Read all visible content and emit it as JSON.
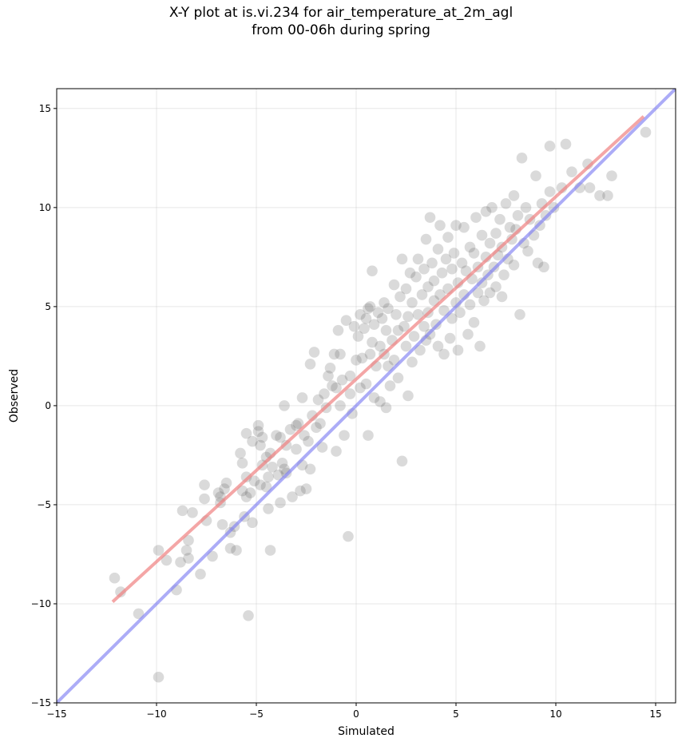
{
  "chart_data": {
    "type": "scatter",
    "title_line1": "X-Y plot at is.vi.234 for air_temperature_at_2m_agl",
    "title_line2": "from 00-06h during spring",
    "xlabel": "Simulated",
    "ylabel": "Observed",
    "xlim": [
      -15,
      16
    ],
    "ylim": [
      -15,
      16
    ],
    "xticks": [
      -15,
      -10,
      -5,
      0,
      5,
      10,
      15
    ],
    "yticks": [
      -15,
      -10,
      -5,
      0,
      5,
      10,
      15
    ],
    "xtick_labels": [
      "−15",
      "−10",
      "−5",
      "0",
      "5",
      "10",
      "15"
    ],
    "ytick_labels": [
      "−15",
      "−10",
      "−5",
      "0",
      "5",
      "10",
      "15"
    ],
    "grid": true,
    "colors": {
      "points": "#555555",
      "regression_line": "#f08080",
      "identity_line": "#7f7ff2"
    },
    "regression_line": {
      "x": [
        -12.2,
        14.4
      ],
      "y": [
        -9.9,
        14.6
      ]
    },
    "identity_line": {
      "x": [
        -15,
        16
      ],
      "y": [
        -15,
        16
      ]
    },
    "points": [
      [
        -12.1,
        -8.7
      ],
      [
        -11.8,
        -9.4
      ],
      [
        -10.9,
        -10.5
      ],
      [
        -9.9,
        -13.7
      ],
      [
        -9.9,
        -7.3
      ],
      [
        -9.5,
        -7.8
      ],
      [
        -9.0,
        -9.3
      ],
      [
        -8.8,
        -7.9
      ],
      [
        -8.7,
        -5.3
      ],
      [
        -8.5,
        -7.3
      ],
      [
        -8.4,
        -6.8
      ],
      [
        -8.4,
        -7.7
      ],
      [
        -8.2,
        -5.4
      ],
      [
        -7.8,
        -8.5
      ],
      [
        -7.6,
        -4.0
      ],
      [
        -7.6,
        -4.7
      ],
      [
        -7.5,
        -5.8
      ],
      [
        -7.2,
        -7.6
      ],
      [
        -6.9,
        -4.4
      ],
      [
        -6.8,
        -4.9
      ],
      [
        -6.8,
        -4.6
      ],
      [
        -6.7,
        -6.0
      ],
      [
        -6.6,
        -4.2
      ],
      [
        -6.5,
        -3.9
      ],
      [
        -6.3,
        -7.2
      ],
      [
        -6.3,
        -6.4
      ],
      [
        -6.1,
        -6.1
      ],
      [
        -6.0,
        -7.3
      ],
      [
        -5.8,
        -2.4
      ],
      [
        -5.7,
        -2.9
      ],
      [
        -5.7,
        -4.3
      ],
      [
        -5.6,
        -5.6
      ],
      [
        -5.5,
        -1.4
      ],
      [
        -5.5,
        -4.6
      ],
      [
        -5.5,
        -3.6
      ],
      [
        -5.4,
        -10.6
      ],
      [
        -5.3,
        -4.4
      ],
      [
        -5.2,
        -1.8
      ],
      [
        -5.2,
        -5.9
      ],
      [
        -5.1,
        -3.8
      ],
      [
        -4.9,
        -1.3
      ],
      [
        -4.9,
        -1.0
      ],
      [
        -4.8,
        -2.0
      ],
      [
        -4.8,
        -4.0
      ],
      [
        -4.7,
        -1.6
      ],
      [
        -4.7,
        -3.0
      ],
      [
        -4.5,
        -2.6
      ],
      [
        -4.5,
        -4.1
      ],
      [
        -4.4,
        -3.6
      ],
      [
        -4.4,
        -5.2
      ],
      [
        -4.3,
        -2.4
      ],
      [
        -4.3,
        -7.3
      ],
      [
        -4.2,
        -3.1
      ],
      [
        -4.0,
        -1.5
      ],
      [
        -3.9,
        -3.5
      ],
      [
        -3.8,
        -1.6
      ],
      [
        -3.8,
        -4.9
      ],
      [
        -3.7,
        -2.9
      ],
      [
        -3.6,
        0.0
      ],
      [
        -3.6,
        -3.2
      ],
      [
        -3.5,
        -2.0
      ],
      [
        -3.5,
        -3.4
      ],
      [
        -3.3,
        -1.2
      ],
      [
        -3.2,
        -4.6
      ],
      [
        -3.0,
        -2.2
      ],
      [
        -3.0,
        -1.0
      ],
      [
        -2.9,
        -0.9
      ],
      [
        -2.8,
        -4.3
      ],
      [
        -2.7,
        -3.0
      ],
      [
        -2.7,
        0.4
      ],
      [
        -2.6,
        -1.5
      ],
      [
        -2.5,
        -4.2
      ],
      [
        -2.4,
        -1.8
      ],
      [
        -2.3,
        2.1
      ],
      [
        -2.3,
        -3.2
      ],
      [
        -2.2,
        -0.5
      ],
      [
        -2.1,
        2.7
      ],
      [
        -2.0,
        -1.1
      ],
      [
        -1.9,
        0.3
      ],
      [
        -1.8,
        -0.9
      ],
      [
        -1.7,
        -2.1
      ],
      [
        -1.6,
        0.6
      ],
      [
        -1.5,
        -0.1
      ],
      [
        -1.4,
        1.5
      ],
      [
        -1.3,
        1.9
      ],
      [
        -1.2,
        1.0
      ],
      [
        -1.1,
        2.6
      ],
      [
        -1.0,
        -2.3
      ],
      [
        -1.0,
        0.9
      ],
      [
        -0.9,
        3.8
      ],
      [
        -0.8,
        2.6
      ],
      [
        -0.8,
        0.0
      ],
      [
        -0.7,
        1.3
      ],
      [
        -0.6,
        -1.5
      ],
      [
        -0.5,
        4.3
      ],
      [
        -0.4,
        -6.6
      ],
      [
        -0.3,
        0.6
      ],
      [
        -0.3,
        1.5
      ],
      [
        -0.2,
        -0.4
      ],
      [
        -0.1,
        4.0
      ],
      [
        0.0,
        2.3
      ],
      [
        0.1,
        3.5
      ],
      [
        0.2,
        0.9
      ],
      [
        0.2,
        4.6
      ],
      [
        0.3,
        2.4
      ],
      [
        0.4,
        3.9
      ],
      [
        0.5,
        4.4
      ],
      [
        0.5,
        1.1
      ],
      [
        0.6,
        -1.5
      ],
      [
        0.6,
        4.9
      ],
      [
        0.7,
        2.6
      ],
      [
        0.7,
        5.0
      ],
      [
        0.8,
        3.2
      ],
      [
        0.8,
        6.8
      ],
      [
        0.9,
        4.1
      ],
      [
        0.9,
        0.4
      ],
      [
        1.0,
        2.0
      ],
      [
        1.1,
        4.7
      ],
      [
        1.2,
        3.0
      ],
      [
        1.2,
        0.2
      ],
      [
        1.3,
        4.4
      ],
      [
        1.4,
        2.6
      ],
      [
        1.4,
        5.2
      ],
      [
        1.5,
        -0.1
      ],
      [
        1.5,
        3.8
      ],
      [
        1.6,
        2.0
      ],
      [
        1.6,
        4.9
      ],
      [
        1.7,
        1.0
      ],
      [
        1.8,
        3.3
      ],
      [
        1.9,
        6.1
      ],
      [
        1.9,
        2.3
      ],
      [
        2.0,
        4.6
      ],
      [
        2.1,
        3.8
      ],
      [
        2.1,
        1.4
      ],
      [
        2.2,
        5.5
      ],
      [
        2.3,
        7.4
      ],
      [
        2.3,
        -2.8
      ],
      [
        2.4,
        4.0
      ],
      [
        2.5,
        3.0
      ],
      [
        2.5,
        5.9
      ],
      [
        2.6,
        0.5
      ],
      [
        2.6,
        4.5
      ],
      [
        2.7,
        6.7
      ],
      [
        2.8,
        2.2
      ],
      [
        2.8,
        5.2
      ],
      [
        2.9,
        3.5
      ],
      [
        3.0,
        6.5
      ],
      [
        3.1,
        4.6
      ],
      [
        3.1,
        7.4
      ],
      [
        3.2,
        2.8
      ],
      [
        3.3,
        5.6
      ],
      [
        3.4,
        4.0
      ],
      [
        3.4,
        6.9
      ],
      [
        3.5,
        8.4
      ],
      [
        3.5,
        3.3
      ],
      [
        3.6,
        6.0
      ],
      [
        3.6,
        4.7
      ],
      [
        3.7,
        9.5
      ],
      [
        3.7,
        3.6
      ],
      [
        3.8,
        7.2
      ],
      [
        3.9,
        5.3
      ],
      [
        3.9,
        6.3
      ],
      [
        4.0,
        4.1
      ],
      [
        4.1,
        7.9
      ],
      [
        4.1,
        3.0
      ],
      [
        4.2,
        9.1
      ],
      [
        4.2,
        5.6
      ],
      [
        4.3,
        6.7
      ],
      [
        4.4,
        2.6
      ],
      [
        4.4,
        4.8
      ],
      [
        4.5,
        7.4
      ],
      [
        4.6,
        8.5
      ],
      [
        4.6,
        5.9
      ],
      [
        4.7,
        3.4
      ],
      [
        4.8,
        6.9
      ],
      [
        4.8,
        4.4
      ],
      [
        4.9,
        7.7
      ],
      [
        5.0,
        5.2
      ],
      [
        5.0,
        9.1
      ],
      [
        5.1,
        2.8
      ],
      [
        5.1,
        6.2
      ],
      [
        5.2,
        4.7
      ],
      [
        5.3,
        7.2
      ],
      [
        5.4,
        5.6
      ],
      [
        5.4,
        9.0
      ],
      [
        5.5,
        6.8
      ],
      [
        5.6,
        3.6
      ],
      [
        5.7,
        8.0
      ],
      [
        5.7,
        5.1
      ],
      [
        5.8,
        6.4
      ],
      [
        5.9,
        7.7
      ],
      [
        5.9,
        4.2
      ],
      [
        6.0,
        9.5
      ],
      [
        6.1,
        5.7
      ],
      [
        6.1,
        7.0
      ],
      [
        6.2,
        3.0
      ],
      [
        6.3,
        8.6
      ],
      [
        6.3,
        6.2
      ],
      [
        6.4,
        5.3
      ],
      [
        6.5,
        7.5
      ],
      [
        6.5,
        9.8
      ],
      [
        6.6,
        6.6
      ],
      [
        6.7,
        8.2
      ],
      [
        6.7,
        5.7
      ],
      [
        6.8,
        10.0
      ],
      [
        6.9,
        7.0
      ],
      [
        7.0,
        6.0
      ],
      [
        7.0,
        8.7
      ],
      [
        7.1,
        7.6
      ],
      [
        7.2,
        9.4
      ],
      [
        7.3,
        5.5
      ],
      [
        7.3,
        8.0
      ],
      [
        7.4,
        6.6
      ],
      [
        7.5,
        10.2
      ],
      [
        7.6,
        7.4
      ],
      [
        7.7,
        9.0
      ],
      [
        7.8,
        8.4
      ],
      [
        7.9,
        10.6
      ],
      [
        7.9,
        7.1
      ],
      [
        8.0,
        8.9
      ],
      [
        8.1,
        9.6
      ],
      [
        8.2,
        4.6
      ],
      [
        8.3,
        12.5
      ],
      [
        8.4,
        8.2
      ],
      [
        8.5,
        10.0
      ],
      [
        8.6,
        7.8
      ],
      [
        8.7,
        9.4
      ],
      [
        8.9,
        8.6
      ],
      [
        9.0,
        11.6
      ],
      [
        9.1,
        7.2
      ],
      [
        9.2,
        9.1
      ],
      [
        9.3,
        10.2
      ],
      [
        9.4,
        7.0
      ],
      [
        9.5,
        9.6
      ],
      [
        9.7,
        10.8
      ],
      [
        9.7,
        13.1
      ],
      [
        9.9,
        10.0
      ],
      [
        10.3,
        11.0
      ],
      [
        10.5,
        13.2
      ],
      [
        10.8,
        11.8
      ],
      [
        11.2,
        11.0
      ],
      [
        11.6,
        12.2
      ],
      [
        11.7,
        11.0
      ],
      [
        12.2,
        10.6
      ],
      [
        12.6,
        10.6
      ],
      [
        12.8,
        11.6
      ],
      [
        14.5,
        13.8
      ]
    ]
  }
}
